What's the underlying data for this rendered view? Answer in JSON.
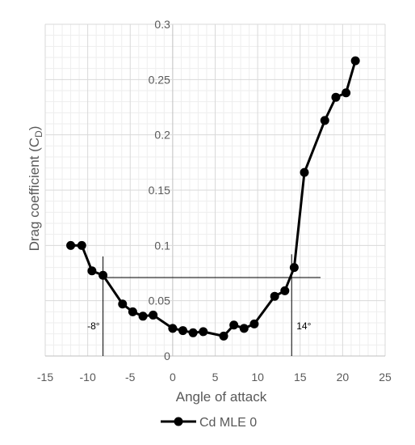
{
  "chart_data": {
    "type": "line",
    "xlabel": "Angle of attack",
    "ylabel_main": "Drag coefficient (C",
    "ylabel_sub": "D",
    "ylabel_close": ")",
    "xlim": [
      -15,
      25
    ],
    "ylim": [
      0,
      0.3
    ],
    "x_ticks": [
      -15,
      -10,
      -5,
      0,
      5,
      10,
      15,
      20,
      25
    ],
    "x_tick_labels": [
      "-15",
      "-10",
      "-5",
      "0",
      "5",
      "10",
      "15",
      "20",
      "25"
    ],
    "y_ticks": [
      0,
      0.05,
      0.1,
      0.15,
      0.2,
      0.25,
      0.3
    ],
    "y_tick_labels": [
      "0",
      "0.05",
      "0.1",
      "0.15",
      "0.2",
      "0.25",
      "0.3"
    ],
    "grid": true,
    "legend_position": "bottom",
    "series": [
      {
        "name": "Cd MLE 0",
        "color": "#000000",
        "marker": "circle",
        "points": [
          {
            "x": -12.0,
            "y": 0.1
          },
          {
            "x": -10.7,
            "y": 0.1
          },
          {
            "x": -9.5,
            "y": 0.077
          },
          {
            "x": -8.2,
            "y": 0.073
          },
          {
            "x": -5.9,
            "y": 0.047
          },
          {
            "x": -4.7,
            "y": 0.04
          },
          {
            "x": -3.5,
            "y": 0.036
          },
          {
            "x": -2.3,
            "y": 0.037
          },
          {
            "x": 0.0,
            "y": 0.025
          },
          {
            "x": 1.2,
            "y": 0.023
          },
          {
            "x": 2.4,
            "y": 0.021
          },
          {
            "x": 3.6,
            "y": 0.022
          },
          {
            "x": 6.0,
            "y": 0.018
          },
          {
            "x": 7.2,
            "y": 0.028
          },
          {
            "x": 8.4,
            "y": 0.025
          },
          {
            "x": 9.6,
            "y": 0.029
          },
          {
            "x": 12.0,
            "y": 0.054
          },
          {
            "x": 13.2,
            "y": 0.059
          },
          {
            "x": 14.3,
            "y": 0.08
          },
          {
            "x": 15.5,
            "y": 0.166
          },
          {
            "x": 17.9,
            "y": 0.213
          },
          {
            "x": 19.2,
            "y": 0.234
          },
          {
            "x": 20.4,
            "y": 0.238
          },
          {
            "x": 21.5,
            "y": 0.267
          }
        ]
      }
    ],
    "reference_lines": {
      "horizontal": {
        "y": 0.071,
        "x_from": -8.2,
        "x_to": 17.4
      },
      "vertical": [
        {
          "x": -8.2,
          "y_from": 0,
          "y_to": 0.09,
          "label": "-8°"
        },
        {
          "x": 14.0,
          "y_from": 0,
          "y_to": 0.092,
          "label": "14°"
        }
      ]
    }
  }
}
